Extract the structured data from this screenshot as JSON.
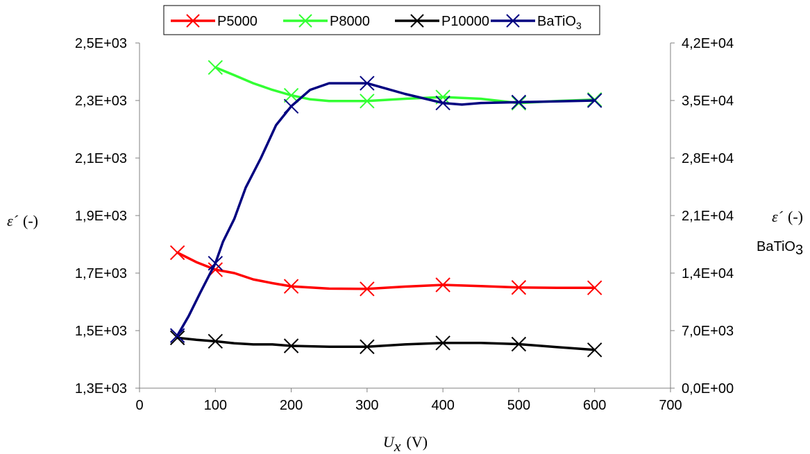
{
  "chart_data": {
    "type": "line",
    "x_axis": {
      "label_symbol": "U",
      "label_sub": "x",
      "label_unit": "(V)",
      "range": [
        0,
        700
      ],
      "ticks": [
        "0",
        "100",
        "200",
        "300",
        "400",
        "500",
        "600",
        "700"
      ]
    },
    "y_left": {
      "label_symbol": "ε´",
      "label_unit": "(-)",
      "range": [
        1300,
        2500
      ],
      "ticks": [
        "1,3E+03",
        "1,5E+03",
        "1,7E+03",
        "1,9E+03",
        "2,1E+03",
        "2,3E+03",
        "2,5E+03"
      ]
    },
    "y_right": {
      "label_symbol": "ε´",
      "label_unit": "(-)",
      "label_line2_main": "BaTiO",
      "label_line2_sub": "3",
      "range": [
        0,
        42000
      ],
      "ticks": [
        "0,0E+00",
        "7,0E+03",
        "1,4E+04",
        "2,1E+04",
        "2,8E+04",
        "3,5E+04",
        "4,2E+04"
      ]
    },
    "grid": false,
    "legend_position": "top",
    "series": [
      {
        "name": "P5000",
        "legend_main": "P5000",
        "legend_sub": "",
        "color": "#ff0000",
        "axis": "left",
        "line": [
          [
            50,
            1771
          ],
          [
            75,
            1738
          ],
          [
            100,
            1712
          ],
          [
            125,
            1700
          ],
          [
            150,
            1678
          ],
          [
            175,
            1665
          ],
          [
            200,
            1654
          ],
          [
            250,
            1646
          ],
          [
            300,
            1645
          ],
          [
            350,
            1653
          ],
          [
            400,
            1659
          ],
          [
            450,
            1655
          ],
          [
            500,
            1650
          ],
          [
            550,
            1649
          ],
          [
            600,
            1649
          ]
        ],
        "markers": [
          [
            50,
            1771
          ],
          [
            100,
            1712
          ],
          [
            200,
            1654
          ],
          [
            300,
            1645
          ],
          [
            400,
            1659
          ],
          [
            500,
            1650
          ],
          [
            600,
            1649
          ]
        ]
      },
      {
        "name": "P8000",
        "legend_main": "P8000",
        "legend_sub": "",
        "color": "#33ff33",
        "axis": "left",
        "line": [
          [
            100,
            2415
          ],
          [
            125,
            2388
          ],
          [
            150,
            2360
          ],
          [
            175,
            2337
          ],
          [
            200,
            2318
          ],
          [
            225,
            2304
          ],
          [
            250,
            2298
          ],
          [
            300,
            2298
          ],
          [
            350,
            2306
          ],
          [
            400,
            2312
          ],
          [
            450,
            2306
          ],
          [
            500,
            2291
          ],
          [
            550,
            2298
          ],
          [
            600,
            2303
          ]
        ],
        "markers": [
          [
            100,
            2415
          ],
          [
            200,
            2318
          ],
          [
            300,
            2298
          ],
          [
            400,
            2312
          ],
          [
            500,
            2291
          ],
          [
            600,
            2303
          ]
        ]
      },
      {
        "name": "P10000",
        "legend_main": "P10000",
        "legend_sub": "",
        "color": "#000000",
        "axis": "left",
        "line": [
          [
            50,
            1475
          ],
          [
            75,
            1468
          ],
          [
            100,
            1463
          ],
          [
            125,
            1456
          ],
          [
            150,
            1452
          ],
          [
            175,
            1452
          ],
          [
            200,
            1447
          ],
          [
            250,
            1444
          ],
          [
            300,
            1444
          ],
          [
            350,
            1452
          ],
          [
            400,
            1457
          ],
          [
            450,
            1457
          ],
          [
            500,
            1453
          ],
          [
            550,
            1443
          ],
          [
            600,
            1433
          ]
        ],
        "markers": [
          [
            50,
            1475
          ],
          [
            100,
            1463
          ],
          [
            200,
            1447
          ],
          [
            300,
            1444
          ],
          [
            400,
            1457
          ],
          [
            500,
            1453
          ],
          [
            600,
            1433
          ]
        ]
      },
      {
        "name": "BaTiO3",
        "legend_main": "BaTiO",
        "legend_sub": "3",
        "color": "#000080",
        "axis": "right",
        "line": [
          [
            50,
            6400
          ],
          [
            65,
            8800
          ],
          [
            80,
            11600
          ],
          [
            100,
            15200
          ],
          [
            110,
            17800
          ],
          [
            125,
            20600
          ],
          [
            140,
            24400
          ],
          [
            160,
            28000
          ],
          [
            180,
            32000
          ],
          [
            200,
            34300
          ],
          [
            225,
            36300
          ],
          [
            250,
            37100
          ],
          [
            300,
            37100
          ],
          [
            350,
            35800
          ],
          [
            400,
            34700
          ],
          [
            425,
            34500
          ],
          [
            450,
            34700
          ],
          [
            500,
            34800
          ],
          [
            550,
            34900
          ],
          [
            600,
            35000
          ]
        ],
        "markers": [
          [
            50,
            6400
          ],
          [
            100,
            15200
          ],
          [
            200,
            34300
          ],
          [
            300,
            37100
          ],
          [
            400,
            34700
          ],
          [
            500,
            34800
          ],
          [
            600,
            35000
          ]
        ]
      }
    ]
  }
}
